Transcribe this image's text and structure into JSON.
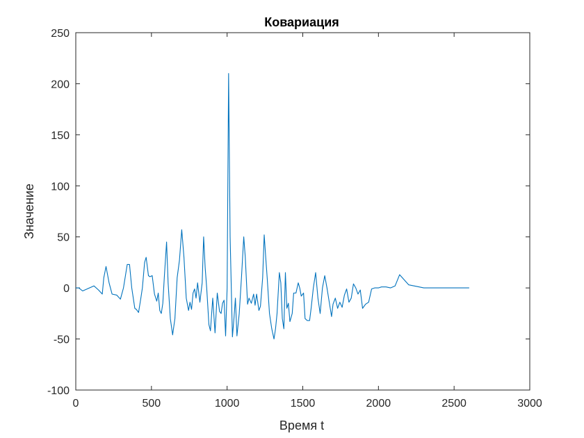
{
  "chart_data": {
    "type": "line",
    "title": "Ковариация",
    "xlabel": "Время t",
    "ylabel": "Значение",
    "xlim": [
      0,
      3000
    ],
    "ylim": [
      -100,
      250
    ],
    "xticks": [
      0,
      500,
      1000,
      1500,
      2000,
      2500,
      3000
    ],
    "yticks": [
      -100,
      -50,
      0,
      50,
      100,
      150,
      200,
      250
    ],
    "grid": false,
    "line_color": "#0072BD",
    "series": [
      {
        "x": [
          0,
          20,
          45,
          75,
          120,
          150,
          175,
          185,
          200,
          220,
          240,
          270,
          295,
          315,
          340,
          355,
          370,
          390,
          400,
          415,
          430,
          440,
          455,
          465,
          480,
          490,
          505,
          520,
          535,
          545,
          555,
          565,
          575,
          585,
          600,
          610,
          625,
          640,
          655,
          670,
          685,
          700,
          715,
          730,
          745,
          755,
          765,
          775,
          785,
          795,
          805,
          820,
          835,
          845,
          855,
          865,
          880,
          890,
          905,
          920,
          935,
          950,
          960,
          970,
          980,
          990,
          1000,
          1010,
          1020,
          1035,
          1045,
          1055,
          1065,
          1080,
          1095,
          1110,
          1120,
          1135,
          1145,
          1160,
          1175,
          1185,
          1195,
          1210,
          1220,
          1235,
          1245,
          1255,
          1265,
          1280,
          1295,
          1310,
          1320,
          1330,
          1345,
          1355,
          1365,
          1375,
          1385,
          1395,
          1405,
          1415,
          1430,
          1440,
          1455,
          1470,
          1480,
          1490,
          1505,
          1515,
          1530,
          1545,
          1555,
          1570,
          1585,
          1600,
          1615,
          1630,
          1645,
          1660,
          1675,
          1690,
          1700,
          1715,
          1730,
          1745,
          1760,
          1775,
          1790,
          1805,
          1820,
          1835,
          1850,
          1865,
          1880,
          1895,
          1915,
          1935,
          1955,
          1975,
          2000,
          2020,
          2050,
          2080,
          2110,
          2140,
          2200,
          2300,
          2400,
          2500,
          2600
        ],
        "y": [
          0,
          0,
          -3,
          -1,
          2,
          -2,
          -6,
          10,
          21,
          5,
          -6,
          -7,
          -11,
          0,
          23,
          23,
          0,
          -20,
          -21,
          -24,
          -10,
          0,
          25,
          30,
          12,
          11,
          12,
          -6,
          -13,
          -5,
          -22,
          -25,
          -15,
          10,
          45,
          5,
          -30,
          -46,
          -30,
          10,
          27,
          57,
          30,
          -10,
          -22,
          -14,
          -21,
          -5,
          -1,
          -10,
          5,
          -14,
          5,
          50,
          20,
          0,
          -36,
          -42,
          -10,
          -44,
          -5,
          -23,
          -25,
          -15,
          -12,
          -47,
          0,
          210,
          50,
          -48,
          -30,
          -10,
          -47,
          -25,
          10,
          50,
          30,
          -16,
          -10,
          -15,
          -6,
          -17,
          -6,
          -22,
          -18,
          10,
          52,
          30,
          10,
          -25,
          -40,
          -50,
          -40,
          -25,
          15,
          5,
          -30,
          -40,
          15,
          -20,
          -15,
          -33,
          -25,
          -5,
          -5,
          5,
          0,
          -8,
          -5,
          -30,
          -32,
          -32,
          -20,
          0,
          15,
          -10,
          -25,
          0,
          12,
          0,
          -14,
          -28,
          -16,
          -10,
          -20,
          -14,
          -19,
          -7,
          -1,
          -14,
          -10,
          4,
          0,
          -6,
          -2,
          -20,
          -16,
          -14,
          -1,
          0,
          0,
          1,
          1,
          0,
          2,
          13,
          3,
          0,
          0,
          0,
          0
        ]
      }
    ]
  }
}
